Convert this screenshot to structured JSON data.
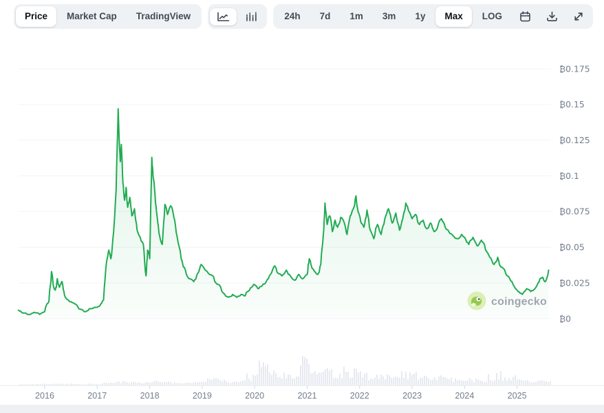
{
  "toolbar": {
    "view_tabs": [
      {
        "label": "Price",
        "name": "view-tab-price",
        "selected": true
      },
      {
        "label": "Market Cap",
        "name": "view-tab-market-cap",
        "selected": false
      },
      {
        "label": "TradingView",
        "name": "view-tab-tradingview",
        "selected": false
      }
    ],
    "chart_types": [
      {
        "icon": "line-chart-icon",
        "name": "chart-type-line",
        "selected": true
      },
      {
        "icon": "candle-chart-icon",
        "name": "chart-type-candle",
        "selected": false
      }
    ],
    "ranges": [
      {
        "label": "24h",
        "name": "range-24h",
        "selected": false
      },
      {
        "label": "7d",
        "name": "range-7d",
        "selected": false
      },
      {
        "label": "1m",
        "name": "range-1m",
        "selected": false
      },
      {
        "label": "3m",
        "name": "range-3m",
        "selected": false
      },
      {
        "label": "1y",
        "name": "range-1y",
        "selected": false
      },
      {
        "label": "Max",
        "name": "range-max",
        "selected": true
      },
      {
        "label": "LOG",
        "name": "log-scale-toggle",
        "selected": false
      }
    ],
    "tools": [
      {
        "icon": "calendar-icon",
        "name": "date-range-button"
      },
      {
        "icon": "download-icon",
        "name": "download-button"
      },
      {
        "icon": "expand-icon",
        "name": "fullscreen-button"
      }
    ]
  },
  "watermark": {
    "text": "coingecko"
  },
  "colors": {
    "line": "#21ab52",
    "fill": "#22b056",
    "volume": "#e6e9f0",
    "grid": "#f3f4f6",
    "axis_text": "#747e8d",
    "hairline": "#e7eaee",
    "tick": "#d2d7de",
    "bottom_strip": "#eef0f4",
    "watermark_text": "#979ea9",
    "logo_bg": "#dbeeb0",
    "logo_body": "#8dc63f"
  },
  "chart_data": {
    "type": "area",
    "title": "",
    "xlabel": "",
    "ylabel": "",
    "currency_symbol": "₿",
    "grid": true,
    "legend": "none",
    "ylim": [
      0,
      0.1875
    ],
    "xlim": [
      2015.5,
      2025.65
    ],
    "y_ticks": {
      "values": [
        0.175,
        0.15,
        0.125,
        0.1,
        0.075,
        0.05,
        0.025,
        0
      ],
      "labels": [
        "₿0.175",
        "₿0.15",
        "₿0.125",
        "₿0.1",
        "₿0.075",
        "₿0.05",
        "₿0.025",
        "₿0"
      ]
    },
    "x_ticks": {
      "values": [
        2016,
        2017,
        2018,
        2019,
        2020,
        2021,
        2022,
        2023,
        2024,
        2025
      ],
      "labels": [
        "2016",
        "2017",
        "2018",
        "2019",
        "2020",
        "2021",
        "2022",
        "2023",
        "2024",
        "2025"
      ]
    },
    "series": [
      {
        "name": "price_btc",
        "points": [
          [
            2015.5,
            0.006
          ],
          [
            2015.58,
            0.004
          ],
          [
            2015.7,
            0.003
          ],
          [
            2015.8,
            0.0045
          ],
          [
            2015.9,
            0.003
          ],
          [
            2016.0,
            0.005
          ],
          [
            2016.08,
            0.012
          ],
          [
            2016.13,
            0.033
          ],
          [
            2016.16,
            0.024
          ],
          [
            2016.2,
            0.02
          ],
          [
            2016.24,
            0.028
          ],
          [
            2016.28,
            0.022
          ],
          [
            2016.33,
            0.026
          ],
          [
            2016.38,
            0.016
          ],
          [
            2016.45,
            0.013
          ],
          [
            2016.55,
            0.011
          ],
          [
            2016.65,
            0.007
          ],
          [
            2016.75,
            0.005
          ],
          [
            2016.85,
            0.007
          ],
          [
            2016.95,
            0.008
          ],
          [
            2017.05,
            0.009
          ],
          [
            2017.12,
            0.013
          ],
          [
            2017.18,
            0.04
          ],
          [
            2017.22,
            0.048
          ],
          [
            2017.26,
            0.042
          ],
          [
            2017.31,
            0.06
          ],
          [
            2017.36,
            0.09
          ],
          [
            2017.4,
            0.147
          ],
          [
            2017.42,
            0.125
          ],
          [
            2017.44,
            0.11
          ],
          [
            2017.46,
            0.122
          ],
          [
            2017.49,
            0.095
          ],
          [
            2017.52,
            0.083
          ],
          [
            2017.55,
            0.092
          ],
          [
            2017.58,
            0.078
          ],
          [
            2017.62,
            0.085
          ],
          [
            2017.66,
            0.072
          ],
          [
            2017.71,
            0.077
          ],
          [
            2017.76,
            0.062
          ],
          [
            2017.82,
            0.057
          ],
          [
            2017.88,
            0.052
          ],
          [
            2017.93,
            0.03
          ],
          [
            2017.96,
            0.048
          ],
          [
            2018.0,
            0.042
          ],
          [
            2018.04,
            0.113
          ],
          [
            2018.07,
            0.098
          ],
          [
            2018.1,
            0.088
          ],
          [
            2018.14,
            0.072
          ],
          [
            2018.19,
            0.058
          ],
          [
            2018.24,
            0.052
          ],
          [
            2018.29,
            0.08
          ],
          [
            2018.34,
            0.073
          ],
          [
            2018.4,
            0.079
          ],
          [
            2018.46,
            0.071
          ],
          [
            2018.52,
            0.058
          ],
          [
            2018.6,
            0.042
          ],
          [
            2018.68,
            0.034
          ],
          [
            2018.76,
            0.028
          ],
          [
            2018.84,
            0.026
          ],
          [
            2018.92,
            0.032
          ],
          [
            2018.98,
            0.038
          ],
          [
            2019.06,
            0.034
          ],
          [
            2019.14,
            0.031
          ],
          [
            2019.22,
            0.029
          ],
          [
            2019.3,
            0.024
          ],
          [
            2019.4,
            0.018
          ],
          [
            2019.5,
            0.015
          ],
          [
            2019.58,
            0.017
          ],
          [
            2019.66,
            0.015
          ],
          [
            2019.74,
            0.017
          ],
          [
            2019.82,
            0.016
          ],
          [
            2019.9,
            0.02
          ],
          [
            2019.98,
            0.024
          ],
          [
            2020.06,
            0.021
          ],
          [
            2020.14,
            0.023
          ],
          [
            2020.22,
            0.026
          ],
          [
            2020.3,
            0.031
          ],
          [
            2020.38,
            0.037
          ],
          [
            2020.44,
            0.032
          ],
          [
            2020.52,
            0.03
          ],
          [
            2020.6,
            0.034
          ],
          [
            2020.68,
            0.03
          ],
          [
            2020.76,
            0.027
          ],
          [
            2020.84,
            0.031
          ],
          [
            2020.92,
            0.028
          ],
          [
            2021.0,
            0.031
          ],
          [
            2021.04,
            0.042
          ],
          [
            2021.08,
            0.037
          ],
          [
            2021.14,
            0.033
          ],
          [
            2021.2,
            0.031
          ],
          [
            2021.26,
            0.038
          ],
          [
            2021.31,
            0.06
          ],
          [
            2021.34,
            0.081
          ],
          [
            2021.38,
            0.066
          ],
          [
            2021.43,
            0.072
          ],
          [
            2021.48,
            0.061
          ],
          [
            2021.53,
            0.069
          ],
          [
            2021.58,
            0.064
          ],
          [
            2021.64,
            0.071
          ],
          [
            2021.7,
            0.068
          ],
          [
            2021.76,
            0.059
          ],
          [
            2021.82,
            0.072
          ],
          [
            2021.88,
            0.077
          ],
          [
            2021.93,
            0.086
          ],
          [
            2021.97,
            0.075
          ],
          [
            2022.02,
            0.068
          ],
          [
            2022.08,
            0.064
          ],
          [
            2022.14,
            0.076
          ],
          [
            2022.2,
            0.062
          ],
          [
            2022.27,
            0.056
          ],
          [
            2022.34,
            0.066
          ],
          [
            2022.41,
            0.059
          ],
          [
            2022.48,
            0.07
          ],
          [
            2022.55,
            0.077
          ],
          [
            2022.62,
            0.067
          ],
          [
            2022.69,
            0.074
          ],
          [
            2022.76,
            0.062
          ],
          [
            2022.82,
            0.07
          ],
          [
            2022.88,
            0.081
          ],
          [
            2022.94,
            0.075
          ],
          [
            2023.0,
            0.07
          ],
          [
            2023.07,
            0.073
          ],
          [
            2023.14,
            0.066
          ],
          [
            2023.21,
            0.069
          ],
          [
            2023.28,
            0.063
          ],
          [
            2023.35,
            0.067
          ],
          [
            2023.42,
            0.061
          ],
          [
            2023.49,
            0.065
          ],
          [
            2023.56,
            0.07
          ],
          [
            2023.63,
            0.064
          ],
          [
            2023.7,
            0.061
          ],
          [
            2023.78,
            0.058
          ],
          [
            2023.86,
            0.056
          ],
          [
            2023.94,
            0.059
          ],
          [
            2024.0,
            0.057
          ],
          [
            2024.08,
            0.052
          ],
          [
            2024.16,
            0.057
          ],
          [
            2024.24,
            0.051
          ],
          [
            2024.32,
            0.055
          ],
          [
            2024.4,
            0.048
          ],
          [
            2024.48,
            0.043
          ],
          [
            2024.56,
            0.038
          ],
          [
            2024.63,
            0.043
          ],
          [
            2024.7,
            0.036
          ],
          [
            2024.78,
            0.032
          ],
          [
            2024.86,
            0.028
          ],
          [
            2024.94,
            0.023
          ],
          [
            2025.02,
            0.019
          ],
          [
            2025.1,
            0.017
          ],
          [
            2025.18,
            0.021
          ],
          [
            2025.26,
            0.019
          ],
          [
            2025.34,
            0.021
          ],
          [
            2025.42,
            0.026
          ],
          [
            2025.48,
            0.029
          ],
          [
            2025.54,
            0.026
          ],
          [
            2025.6,
            0.034
          ]
        ]
      }
    ],
    "volume_profile": [
      [
        2015.5,
        2
      ],
      [
        2015.8,
        2
      ],
      [
        2016.0,
        3
      ],
      [
        2016.3,
        4
      ],
      [
        2016.6,
        3
      ],
      [
        2016.9,
        3
      ],
      [
        2017.1,
        4
      ],
      [
        2017.3,
        6
      ],
      [
        2017.45,
        9
      ],
      [
        2017.6,
        7
      ],
      [
        2017.8,
        6
      ],
      [
        2017.95,
        8
      ],
      [
        2018.05,
        11
      ],
      [
        2018.2,
        9
      ],
      [
        2018.4,
        7
      ],
      [
        2018.6,
        6
      ],
      [
        2018.8,
        6
      ],
      [
        2019.0,
        9
      ],
      [
        2019.2,
        18
      ],
      [
        2019.35,
        12
      ],
      [
        2019.5,
        9
      ],
      [
        2019.7,
        11
      ],
      [
        2019.9,
        14
      ],
      [
        2020.0,
        25
      ],
      [
        2020.1,
        55
      ],
      [
        2020.17,
        100
      ],
      [
        2020.25,
        62
      ],
      [
        2020.35,
        38
      ],
      [
        2020.5,
        26
      ],
      [
        2020.65,
        22
      ],
      [
        2020.8,
        26
      ],
      [
        2020.95,
        55
      ],
      [
        2021.05,
        40
      ],
      [
        2021.2,
        28
      ],
      [
        2021.35,
        38
      ],
      [
        2021.5,
        27
      ],
      [
        2021.7,
        24
      ],
      [
        2021.9,
        34
      ],
      [
        2022.0,
        28
      ],
      [
        2022.2,
        21
      ],
      [
        2022.4,
        24
      ],
      [
        2022.6,
        19
      ],
      [
        2022.8,
        27
      ],
      [
        2023.0,
        29
      ],
      [
        2023.2,
        19
      ],
      [
        2023.4,
        15
      ],
      [
        2023.6,
        21
      ],
      [
        2023.8,
        14
      ],
      [
        2024.0,
        13
      ],
      [
        2024.2,
        15
      ],
      [
        2024.4,
        11
      ],
      [
        2024.6,
        13
      ],
      [
        2024.8,
        17
      ],
      [
        2024.92,
        26
      ],
      [
        2025.05,
        13
      ],
      [
        2025.2,
        9
      ],
      [
        2025.4,
        11
      ],
      [
        2025.6,
        11
      ]
    ]
  }
}
